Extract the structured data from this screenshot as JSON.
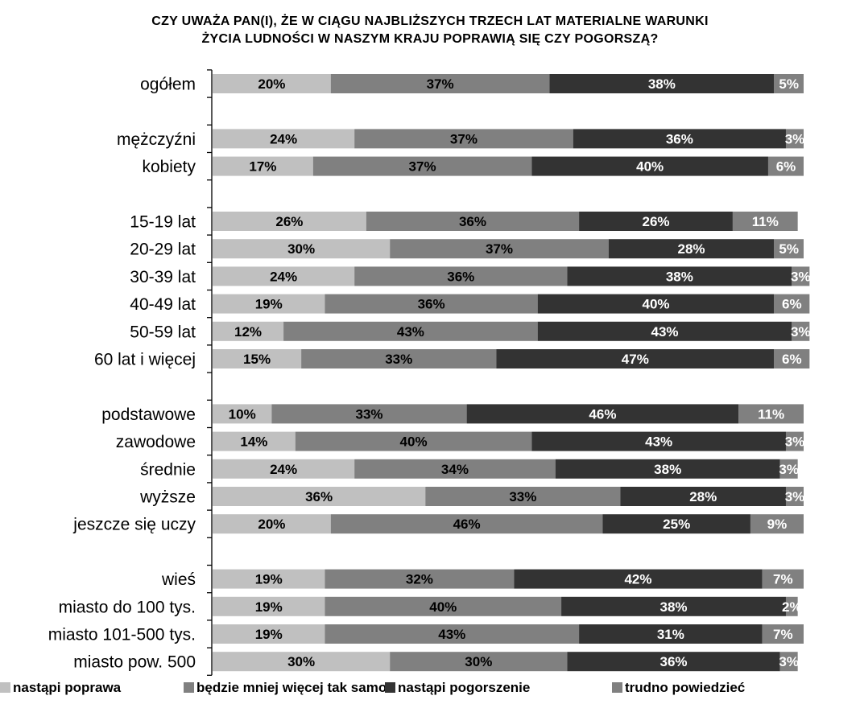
{
  "chart_data": {
    "type": "bar",
    "orientation": "horizontal",
    "stacked": true,
    "title_lines": [
      "CZY UWAŻA PAN(I), ŻE W CIĄGU NAJBLIŻSZYCH TRZECH LAT MATERIALNE WARUNKI",
      "ŻYCIA LUDNOŚCI W NASZYM KRAJU POPRAWIĄ SIĘ CZY POGORSZĄ?"
    ],
    "xlim": [
      0,
      100
    ],
    "value_suffix": "%",
    "legend_position": "bottom",
    "groups": [
      [
        "ogółem"
      ],
      [
        "mężczyźni",
        "kobiety"
      ],
      [
        "15-19 lat",
        "20-29 lat",
        "30-39 lat",
        "40-49 lat",
        "50-59 lat",
        "60 lat i więcej"
      ],
      [
        "podstawowe",
        "zawodowe",
        "średnie",
        "wyższe",
        "jeszcze się uczy"
      ],
      [
        "wieś",
        "miasto do 100 tys.",
        "miasto 101-500 tys.",
        "miasto pow. 500"
      ]
    ],
    "categories": [
      "ogółem",
      "mężczyźni",
      "kobiety",
      "15-19 lat",
      "20-29 lat",
      "30-39 lat",
      "40-49 lat",
      "50-59 lat",
      "60 lat i więcej",
      "podstawowe",
      "zawodowe",
      "średnie",
      "wyższe",
      "jeszcze się uczy",
      "wieś",
      "miasto do 100 tys.",
      "miasto 101-500 tys.",
      "miasto pow. 500"
    ],
    "series": [
      {
        "name": "nastąpi poprawa",
        "color": "#c0c0c0",
        "label_color": "#000000",
        "values": [
          20,
          24,
          17,
          26,
          30,
          24,
          19,
          12,
          15,
          10,
          14,
          24,
          36,
          20,
          19,
          19,
          19,
          30
        ]
      },
      {
        "name": "będzie mniej więcej tak samo",
        "color": "#808080",
        "label_color": "#000000",
        "values": [
          37,
          37,
          37,
          36,
          37,
          36,
          36,
          43,
          33,
          33,
          40,
          34,
          33,
          46,
          32,
          40,
          43,
          30
        ]
      },
      {
        "name": "nastąpi pogorszenie",
        "color": "#333333",
        "label_color": "#ffffff",
        "values": [
          38,
          36,
          40,
          26,
          28,
          38,
          40,
          43,
          47,
          46,
          43,
          38,
          28,
          25,
          42,
          38,
          31,
          36
        ]
      },
      {
        "name": "trudno powiedzieć",
        "color": "#808080",
        "label_color": "#ffffff",
        "values": [
          5,
          3,
          6,
          11,
          5,
          3,
          6,
          3,
          6,
          11,
          3,
          3,
          3,
          9,
          7,
          2,
          7,
          3
        ]
      }
    ]
  }
}
